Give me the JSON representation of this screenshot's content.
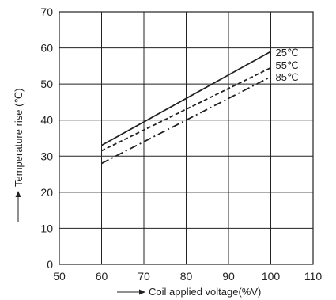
{
  "chart_data": {
    "type": "line",
    "xlabel": "Coil applied voltage(%V)",
    "ylabel": "Temperature rise (℃)",
    "xlim": [
      50,
      110
    ],
    "ylim": [
      0,
      70
    ],
    "xticks": [
      50,
      60,
      70,
      80,
      90,
      100,
      110
    ],
    "yticks": [
      0,
      10,
      20,
      30,
      40,
      50,
      60,
      70
    ],
    "grid": true,
    "legend": "inline labels at line ends",
    "series": [
      {
        "name": "25℃",
        "style": "solid",
        "x": [
          60,
          100
        ],
        "y": [
          33,
          59
        ]
      },
      {
        "name": "55℃",
        "style": "dashed",
        "x": [
          60,
          100
        ],
        "y": [
          31.5,
          54.5
        ]
      },
      {
        "name": "85℃",
        "style": "dashdot",
        "x": [
          60,
          100
        ],
        "y": [
          28,
          52
        ]
      }
    ]
  }
}
